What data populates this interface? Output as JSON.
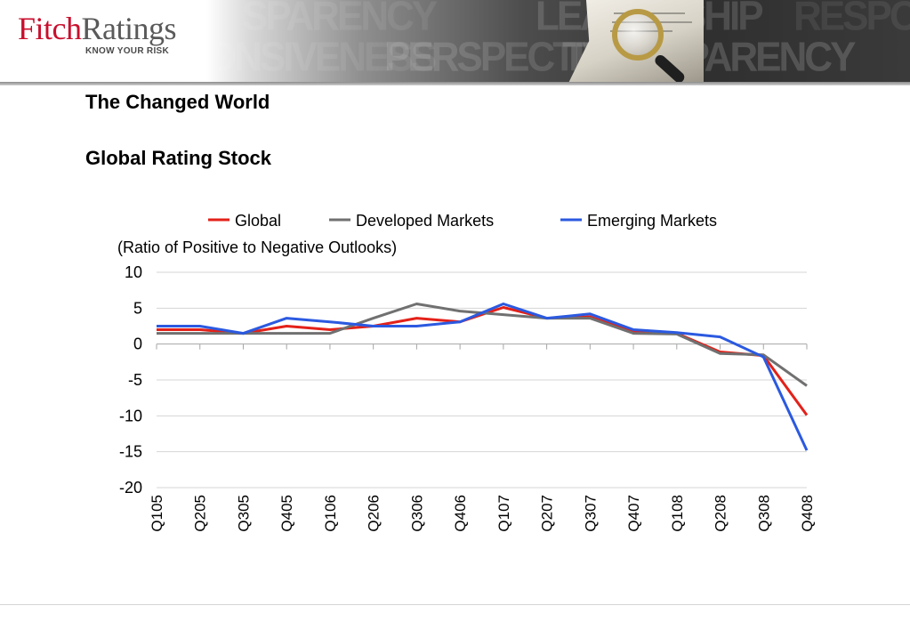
{
  "header": {
    "logo_fitch": "Fitch",
    "logo_ratings": "Ratings",
    "logo_tagline": "KNOW YOUR RISK",
    "banner_words": [
      "SPARENCY",
      "LEADERSHIP",
      "RESPONSIVENESS",
      "ONSIVENESS",
      "PERSPECTIVE",
      "TRANSPARENCY"
    ]
  },
  "slide": {
    "title": "The Changed World",
    "subtitle": "Global Rating Stock"
  },
  "chart_data": {
    "type": "line",
    "title": "",
    "ylabel": "(Ratio of Positive to Negative Outlooks)",
    "xlabel": "",
    "ylim": [
      -20,
      10
    ],
    "yticks": [
      10,
      5,
      0,
      -5,
      -10,
      -15,
      -20
    ],
    "grid": true,
    "legend": "top",
    "categories": [
      "Q105",
      "Q205",
      "Q305",
      "Q405",
      "Q106",
      "Q206",
      "Q306",
      "Q406",
      "Q107",
      "Q207",
      "Q307",
      "Q407",
      "Q108",
      "Q208",
      "Q308",
      "Q408"
    ],
    "series": [
      {
        "name": "Global",
        "color": "#e32119",
        "values": [
          2.0,
          2.0,
          1.5,
          2.5,
          2.0,
          2.5,
          3.6,
          3.1,
          5.1,
          3.6,
          3.8,
          1.7,
          1.5,
          -1.1,
          -1.6,
          -9.9
        ]
      },
      {
        "name": "Developed Markets",
        "color": "#707070",
        "values": [
          1.5,
          1.5,
          1.5,
          1.5,
          1.5,
          3.6,
          5.6,
          4.6,
          4.1,
          3.6,
          3.6,
          1.5,
          1.4,
          -1.3,
          -1.5,
          -5.8
        ]
      },
      {
        "name": "Emerging Markets",
        "color": "#2b59e0",
        "values": [
          2.5,
          2.5,
          1.5,
          3.6,
          3.1,
          2.5,
          2.5,
          3.1,
          5.6,
          3.6,
          4.2,
          2.0,
          1.6,
          1.0,
          -1.8,
          -14.8
        ]
      }
    ]
  }
}
